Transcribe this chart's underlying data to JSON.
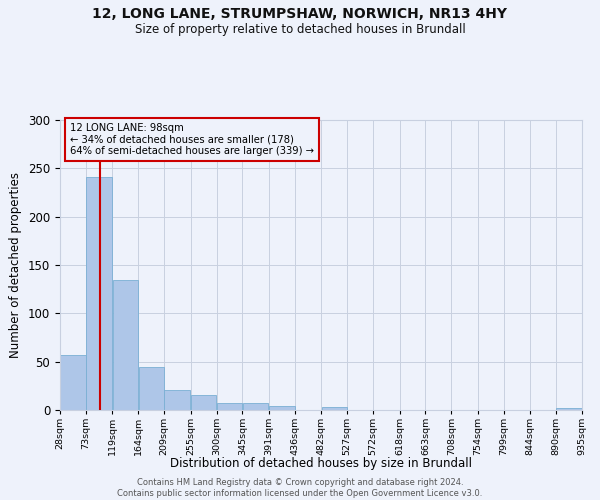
{
  "title1": "12, LONG LANE, STRUMPSHAW, NORWICH, NR13 4HY",
  "title2": "Size of property relative to detached houses in Brundall",
  "xlabel": "Distribution of detached houses by size in Brundall",
  "ylabel": "Number of detached properties",
  "annotation_line1": "12 LONG LANE: 98sqm",
  "annotation_line2": "← 34% of detached houses are smaller (178)",
  "annotation_line3": "64% of semi-detached houses are larger (339) →",
  "property_size_sqm": 98,
  "bin_edges": [
    28,
    73,
    119,
    164,
    209,
    255,
    300,
    345,
    391,
    436,
    482,
    527,
    572,
    618,
    663,
    708,
    754,
    799,
    844,
    890,
    935
  ],
  "bar_heights": [
    57,
    241,
    134,
    44,
    21,
    16,
    7,
    7,
    4,
    0,
    3,
    0,
    0,
    0,
    0,
    0,
    0,
    0,
    0,
    2
  ],
  "bar_color": "#aec6e8",
  "bar_edge_color": "#7aafd4",
  "red_line_color": "#cc0000",
  "annotation_box_edge": "#cc0000",
  "background_color": "#eef2fb",
  "grid_color": "#c8d0e0",
  "footer_line1": "Contains HM Land Registry data © Crown copyright and database right 2024.",
  "footer_line2": "Contains public sector information licensed under the Open Government Licence v3.0.",
  "ylim": [
    0,
    300
  ],
  "yticks": [
    0,
    50,
    100,
    150,
    200,
    250,
    300
  ]
}
